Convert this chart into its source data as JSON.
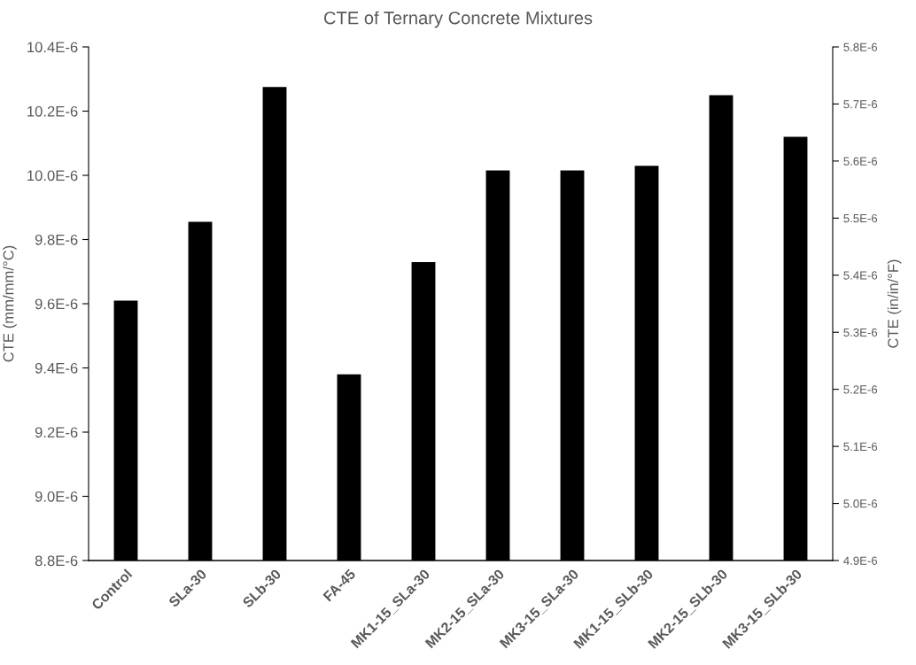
{
  "chart_data": {
    "type": "bar",
    "title": "CTE of Ternary Concrete Mixtures",
    "ylabel": "CTE (mm/mm/°C)",
    "y2label": "CTE (in/in/°F)",
    "categories": [
      "Control",
      "SLa-30",
      "SLb-30",
      "FA-45",
      "MK1-15_SLa-30",
      "MK2-15_SLa-30",
      "MK3-15_SLa-30",
      "MK1-15_SLb-30",
      "MK2-15_SLb-30",
      "MK3-15_SLb-30"
    ],
    "values": [
      9.61e-06,
      9.855e-06,
      1.0275e-05,
      9.38e-06,
      9.73e-06,
      1.0015e-05,
      1.0015e-05,
      1.003e-05,
      1.025e-05,
      1.012e-05
    ],
    "color": "#000000",
    "ylim": [
      8.8e-06,
      1.04e-05
    ],
    "yticks": [
      {
        "value": 8.8e-06,
        "label": "8.8E-6"
      },
      {
        "value": 9e-06,
        "label": "9.0E-6"
      },
      {
        "value": 9.2e-06,
        "label": "9.2E-6"
      },
      {
        "value": 9.4e-06,
        "label": "9.4E-6"
      },
      {
        "value": 9.6e-06,
        "label": "9.6E-6"
      },
      {
        "value": 9.8e-06,
        "label": "9.8E-6"
      },
      {
        "value": 1e-05,
        "label": "10.0E-6"
      },
      {
        "value": 1.02e-05,
        "label": "10.2E-6"
      },
      {
        "value": 1.04e-05,
        "label": "10.4E-6"
      }
    ],
    "y2lim": [
      4.9e-06,
      5.8e-06
    ],
    "y2ticks": [
      {
        "value": 4.9e-06,
        "label": "4.9E-6"
      },
      {
        "value": 5e-06,
        "label": "5.0E-6"
      },
      {
        "value": 5.1e-06,
        "label": "5.1E-6"
      },
      {
        "value": 5.2e-06,
        "label": "5.2E-6"
      },
      {
        "value": 5.3e-06,
        "label": "5.3E-6"
      },
      {
        "value": 5.4e-06,
        "label": "5.4E-6"
      },
      {
        "value": 5.5e-06,
        "label": "5.5E-6"
      },
      {
        "value": 5.6e-06,
        "label": "5.6E-6"
      },
      {
        "value": 5.7e-06,
        "label": "5.7E-6"
      },
      {
        "value": 5.8e-06,
        "label": "5.8E-6"
      }
    ],
    "grid": false,
    "legend": false
  }
}
